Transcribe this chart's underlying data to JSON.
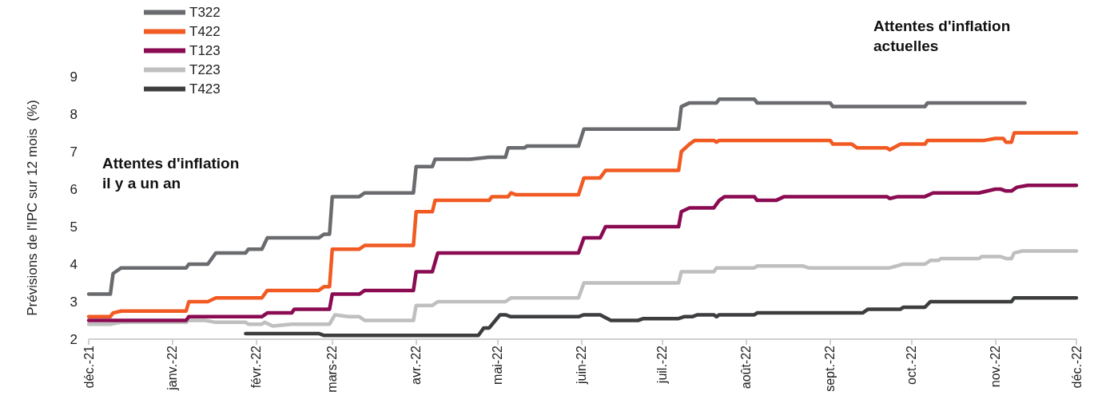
{
  "chart_data": {
    "type": "line",
    "ylabel": "Prévisions de l'IPC sur 12 mois  (%)",
    "annotations": [
      "Attentes d'inflation\nil y a un an",
      "Attentes d'inflation\nactuelles"
    ],
    "xlim": [
      "2021-12-01",
      "2022-12-01"
    ],
    "xticks": [
      {
        "value": "2021-12-01",
        "label": "déc.-21"
      },
      {
        "value": "2022-01-01",
        "label": "janv.-22"
      },
      {
        "value": "2022-02-01",
        "label": "févr.-22"
      },
      {
        "value": "2022-03-01",
        "label": "mars-22"
      },
      {
        "value": "2022-04-01",
        "label": "avr.-22"
      },
      {
        "value": "2022-05-01",
        "label": "mai-22"
      },
      {
        "value": "2022-06-01",
        "label": "juin-22"
      },
      {
        "value": "2022-07-01",
        "label": "juil.-22"
      },
      {
        "value": "2022-08-01",
        "label": "août-22"
      },
      {
        "value": "2022-09-01",
        "label": "sept.-22"
      },
      {
        "value": "2022-10-01",
        "label": "oct.-22"
      },
      {
        "value": "2022-11-01",
        "label": "nov.-22"
      },
      {
        "value": "2022-12-01",
        "label": "déc.-22"
      }
    ],
    "ylim": [
      2,
      9
    ],
    "yticks": [
      2,
      3,
      4,
      5,
      6,
      7,
      8,
      9
    ],
    "grid": false,
    "legend": "top left",
    "marker": "none",
    "line_style": "solid",
    "series": [
      {
        "name": "T322",
        "color": "#696b6e",
        "x": [
          "2021-12-01",
          "2021-12-09",
          "2021-12-10",
          "2021-12-13",
          "2022-01-06",
          "2022-01-07",
          "2022-01-14",
          "2022-01-17",
          "2022-01-28",
          "2022-01-29",
          "2022-02-03",
          "2022-02-05",
          "2022-02-24",
          "2022-02-26",
          "2022-02-28",
          "2022-03-01",
          "2022-03-11",
          "2022-03-13",
          "2022-03-31",
          "2022-04-01",
          "2022-04-07",
          "2022-04-08",
          "2022-04-21",
          "2022-04-28",
          "2022-05-04",
          "2022-05-05",
          "2022-05-11",
          "2022-05-12",
          "2022-05-31",
          "2022-06-02",
          "2022-07-07",
          "2022-07-08",
          "2022-07-11",
          "2022-07-21",
          "2022-07-22",
          "2022-08-04",
          "2022-08-05",
          "2022-09-01",
          "2022-09-02",
          "2022-10-06",
          "2022-10-07",
          "2022-11-12"
        ],
        "values": [
          3.2,
          3.2,
          3.75,
          3.9,
          3.9,
          4.0,
          4.0,
          4.3,
          4.3,
          4.4,
          4.4,
          4.7,
          4.7,
          4.8,
          4.8,
          5.8,
          5.8,
          5.9,
          5.9,
          6.6,
          6.6,
          6.8,
          6.8,
          6.85,
          6.85,
          7.1,
          7.1,
          7.15,
          7.15,
          7.6,
          7.6,
          8.2,
          8.3,
          8.3,
          8.4,
          8.4,
          8.3,
          8.3,
          8.2,
          8.2,
          8.3,
          8.3
        ]
      },
      {
        "name": "T422",
        "color": "#f15a22",
        "x": [
          "2021-12-01",
          "2021-12-09",
          "2021-12-10",
          "2021-12-13",
          "2022-01-06",
          "2022-01-07",
          "2022-01-14",
          "2022-01-17",
          "2022-02-03",
          "2022-02-05",
          "2022-02-24",
          "2022-02-26",
          "2022-02-28",
          "2022-03-01",
          "2022-03-11",
          "2022-03-13",
          "2022-03-31",
          "2022-04-01",
          "2022-04-07",
          "2022-04-08",
          "2022-04-28",
          "2022-04-29",
          "2022-05-05",
          "2022-05-06",
          "2022-05-08",
          "2022-05-31",
          "2022-06-02",
          "2022-06-08",
          "2022-06-10",
          "2022-07-07",
          "2022-07-08",
          "2022-07-11",
          "2022-07-13",
          "2022-07-20",
          "2022-07-21",
          "2022-07-22",
          "2022-09-01",
          "2022-09-02",
          "2022-09-09",
          "2022-09-11",
          "2022-09-22",
          "2022-09-23",
          "2022-09-27",
          "2022-10-06",
          "2022-10-07",
          "2022-10-28",
          "2022-11-01",
          "2022-11-04",
          "2022-11-05",
          "2022-11-07",
          "2022-11-08",
          "2022-12-01"
        ],
        "values": [
          2.6,
          2.6,
          2.7,
          2.75,
          2.75,
          3.0,
          3.0,
          3.1,
          3.1,
          3.3,
          3.3,
          3.4,
          3.4,
          4.4,
          4.4,
          4.5,
          4.5,
          5.4,
          5.4,
          5.7,
          5.7,
          5.8,
          5.8,
          5.9,
          5.85,
          5.85,
          6.3,
          6.3,
          6.5,
          6.5,
          7.0,
          7.2,
          7.3,
          7.3,
          7.25,
          7.3,
          7.3,
          7.2,
          7.2,
          7.1,
          7.1,
          7.05,
          7.2,
          7.2,
          7.3,
          7.3,
          7.35,
          7.35,
          7.25,
          7.25,
          7.5,
          7.5
        ]
      },
      {
        "name": "T123",
        "color": "#8a0b52",
        "x": [
          "2021-12-01",
          "2022-01-06",
          "2022-01-07",
          "2022-02-03",
          "2022-02-05",
          "2022-02-14",
          "2022-02-15",
          "2022-02-28",
          "2022-03-01",
          "2022-03-11",
          "2022-03-13",
          "2022-03-31",
          "2022-04-01",
          "2022-04-07",
          "2022-04-09",
          "2022-05-31",
          "2022-06-02",
          "2022-06-08",
          "2022-06-10",
          "2022-07-07",
          "2022-07-08",
          "2022-07-11",
          "2022-07-20",
          "2022-07-22",
          "2022-07-24",
          "2022-08-04",
          "2022-08-05",
          "2022-08-12",
          "2022-08-15",
          "2022-09-22",
          "2022-09-23",
          "2022-09-26",
          "2022-10-06",
          "2022-10-09",
          "2022-10-26",
          "2022-11-01",
          "2022-11-03",
          "2022-11-05",
          "2022-11-07",
          "2022-11-09",
          "2022-11-13",
          "2022-12-01"
        ],
        "values": [
          2.5,
          2.5,
          2.6,
          2.6,
          2.7,
          2.7,
          2.8,
          2.8,
          3.2,
          3.2,
          3.3,
          3.3,
          3.8,
          3.8,
          4.3,
          4.3,
          4.7,
          4.7,
          5.0,
          5.0,
          5.4,
          5.5,
          5.5,
          5.7,
          5.8,
          5.8,
          5.7,
          5.7,
          5.8,
          5.8,
          5.75,
          5.8,
          5.8,
          5.9,
          5.9,
          6.0,
          6.0,
          5.95,
          5.95,
          6.05,
          6.1,
          6.1
        ]
      },
      {
        "name": "T223",
        "color": "#bfbfbf",
        "x": [
          "2021-12-01",
          "2021-12-09",
          "2021-12-13",
          "2022-01-06",
          "2022-01-07",
          "2022-01-13",
          "2022-01-17",
          "2022-01-28",
          "2022-01-29",
          "2022-02-03",
          "2022-02-04",
          "2022-02-07",
          "2022-02-14",
          "2022-02-28",
          "2022-03-02",
          "2022-03-07",
          "2022-03-11",
          "2022-03-13",
          "2022-03-31",
          "2022-04-01",
          "2022-04-07",
          "2022-04-09",
          "2022-05-04",
          "2022-05-06",
          "2022-05-31",
          "2022-06-02",
          "2022-07-07",
          "2022-07-08",
          "2022-07-20",
          "2022-07-21",
          "2022-08-04",
          "2022-08-05",
          "2022-08-22",
          "2022-08-24",
          "2022-09-23",
          "2022-09-28",
          "2022-10-06",
          "2022-10-08",
          "2022-10-11",
          "2022-10-12",
          "2022-10-26",
          "2022-10-27",
          "2022-11-03",
          "2022-11-05",
          "2022-11-07",
          "2022-11-08",
          "2022-11-11",
          "2022-12-01"
        ],
        "values": [
          2.4,
          2.4,
          2.45,
          2.45,
          2.5,
          2.5,
          2.45,
          2.45,
          2.4,
          2.4,
          2.45,
          2.35,
          2.4,
          2.4,
          2.65,
          2.6,
          2.6,
          2.5,
          2.5,
          2.9,
          2.9,
          3.0,
          3.0,
          3.1,
          3.1,
          3.5,
          3.5,
          3.8,
          3.8,
          3.9,
          3.9,
          3.95,
          3.95,
          3.9,
          3.9,
          4.0,
          4.0,
          4.1,
          4.1,
          4.15,
          4.15,
          4.2,
          4.2,
          4.15,
          4.15,
          4.3,
          4.35,
          4.35
        ]
      },
      {
        "name": "T423",
        "color": "#3c3d3f",
        "x": [
          "2022-01-28",
          "2022-02-24",
          "2022-02-26",
          "2022-04-24",
          "2022-04-26",
          "2022-04-28",
          "2022-05-02",
          "2022-05-04",
          "2022-05-06",
          "2022-05-31",
          "2022-06-02",
          "2022-06-08",
          "2022-06-12",
          "2022-06-22",
          "2022-06-24",
          "2022-07-07",
          "2022-07-09",
          "2022-07-12",
          "2022-07-14",
          "2022-07-20",
          "2022-07-21",
          "2022-07-22",
          "2022-08-04",
          "2022-08-05",
          "2022-09-13",
          "2022-09-15",
          "2022-09-27",
          "2022-09-28",
          "2022-10-06",
          "2022-10-08",
          "2022-11-07",
          "2022-11-08",
          "2022-12-01"
        ],
        "values": [
          2.15,
          2.15,
          2.1,
          2.1,
          2.3,
          2.3,
          2.65,
          2.65,
          2.6,
          2.6,
          2.65,
          2.65,
          2.5,
          2.5,
          2.55,
          2.55,
          2.6,
          2.6,
          2.65,
          2.65,
          2.6,
          2.65,
          2.65,
          2.7,
          2.7,
          2.8,
          2.8,
          2.85,
          2.85,
          3.0,
          3.0,
          3.1,
          3.1
        ]
      }
    ]
  }
}
